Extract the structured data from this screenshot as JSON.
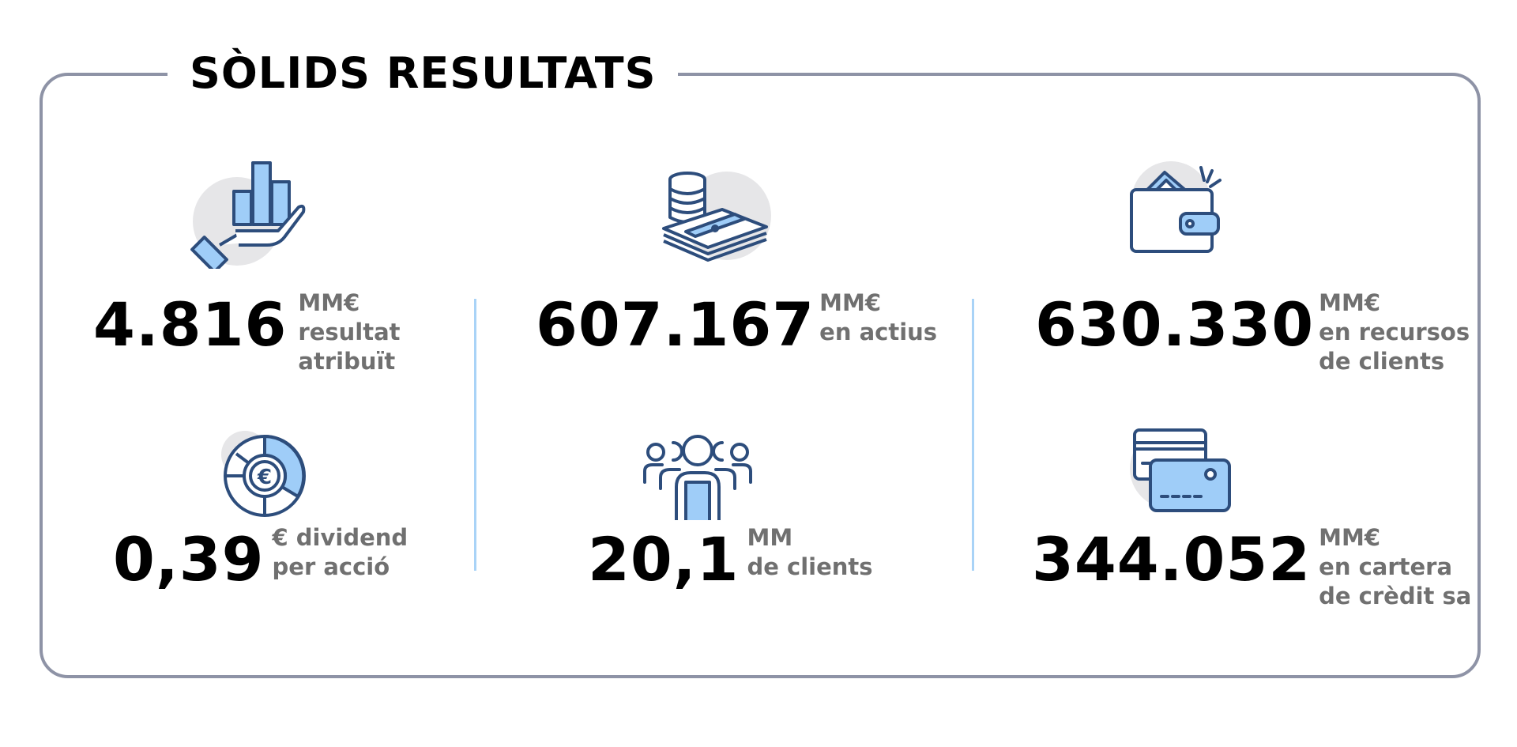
{
  "title": "SÒLIDS RESULTATS",
  "colors": {
    "border": "#8e93a6",
    "divider": "#a9d3f7",
    "icon_stroke": "#2d4d7c",
    "icon_fill": "#9fcdf8",
    "icon_bg": "#e6e6e8"
  },
  "stats": [
    {
      "value": "4.816",
      "unit": "MM€",
      "line1": "resultat",
      "line2": "atribuït",
      "icon": "hand-bar-chart-icon"
    },
    {
      "value": "607.167",
      "unit": "MM€",
      "line1": "en actius",
      "line2": "",
      "icon": "coins-cash-icon"
    },
    {
      "value": "630.330",
      "unit": "MM€",
      "line1": "en recursos",
      "line2": "de clients",
      "icon": "wallet-icon"
    },
    {
      "value": "0,39",
      "unit": "€ dividend",
      "line1": "per acció",
      "line2": "",
      "icon": "euro-pie-chart-icon"
    },
    {
      "value": "20,1",
      "unit": "MM",
      "line1": "de clients",
      "line2": "",
      "icon": "people-group-icon"
    },
    {
      "value": "344.052",
      "unit": "MM€",
      "line1": "en cartera",
      "line2": "de crèdit sa",
      "icon": "credit-cards-icon"
    }
  ]
}
